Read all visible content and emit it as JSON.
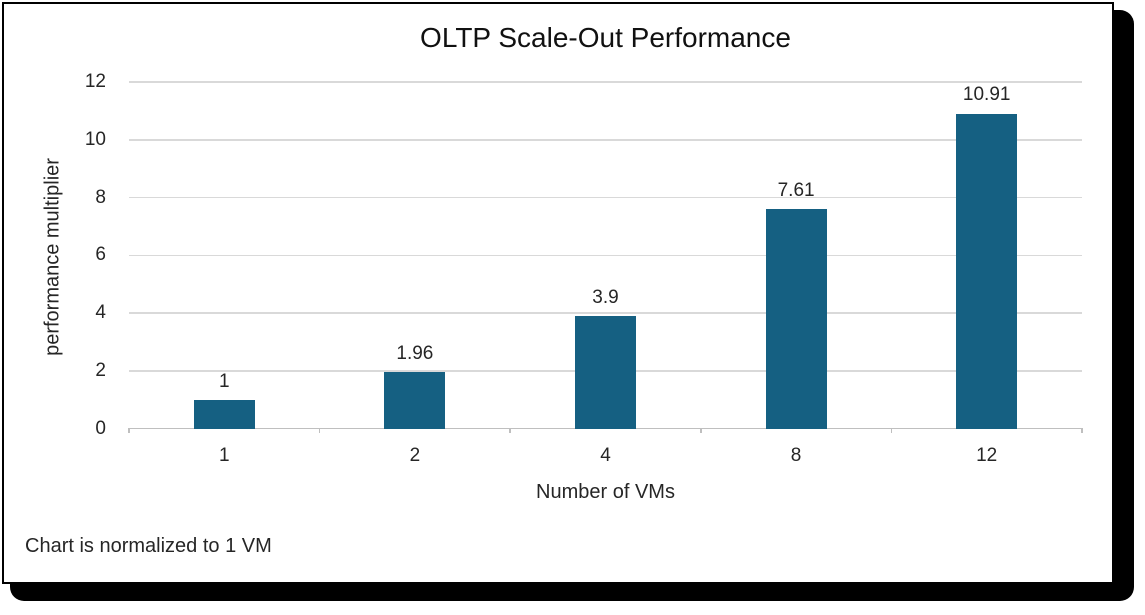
{
  "chart_data": {
    "type": "bar",
    "title": "OLTP Scale-Out Performance",
    "categories": [
      "1",
      "2",
      "4",
      "8",
      "12"
    ],
    "values": [
      1,
      1.96,
      3.9,
      7.61,
      10.91
    ],
    "data_labels": [
      "1",
      "1.96",
      "3.9",
      "7.61",
      "10.91"
    ],
    "xlabel": "Number of VMs",
    "ylabel": "performance multiplier",
    "note": "Chart is normalized to 1 VM",
    "ylim": [
      0,
      12
    ],
    "yticks": [
      0,
      2,
      4,
      6,
      8,
      10,
      12
    ],
    "grid": true,
    "legend_position": "none",
    "bar_color": "#156082",
    "gridline_color": "#d9d9d9",
    "axis_line_color": "#bfbfbf",
    "text_color": "#262626"
  }
}
